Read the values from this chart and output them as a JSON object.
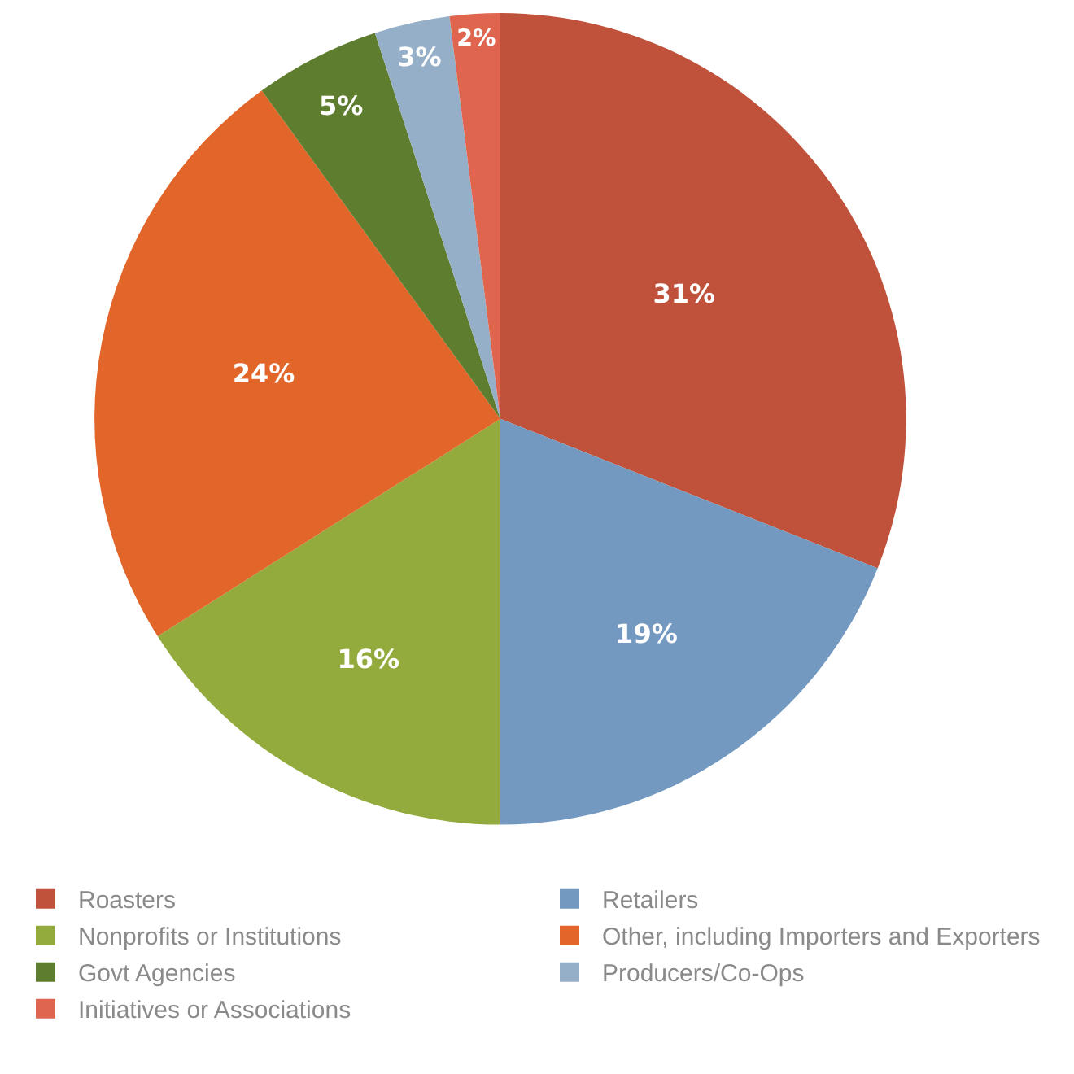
{
  "chart_data": {
    "type": "pie",
    "categories": [
      "Roasters",
      "Retailers",
      "Nonprofits or Institutions",
      "Other, including Importers and Exporters",
      "Govt Agencies",
      "Producers/Co-Ops",
      "Initiatives or Associations"
    ],
    "values": [
      31,
      19,
      16,
      24,
      5,
      3,
      2
    ],
    "value_labels": [
      "31%",
      "19%",
      "16%",
      "24%",
      "5%",
      "3%",
      "2%"
    ],
    "colors": [
      "#c0513a",
      "#7399c0",
      "#92ab3c",
      "#e2662a",
      "#5f7d2e",
      "#96afc9",
      "#e0654e"
    ],
    "legend": "bottom"
  }
}
